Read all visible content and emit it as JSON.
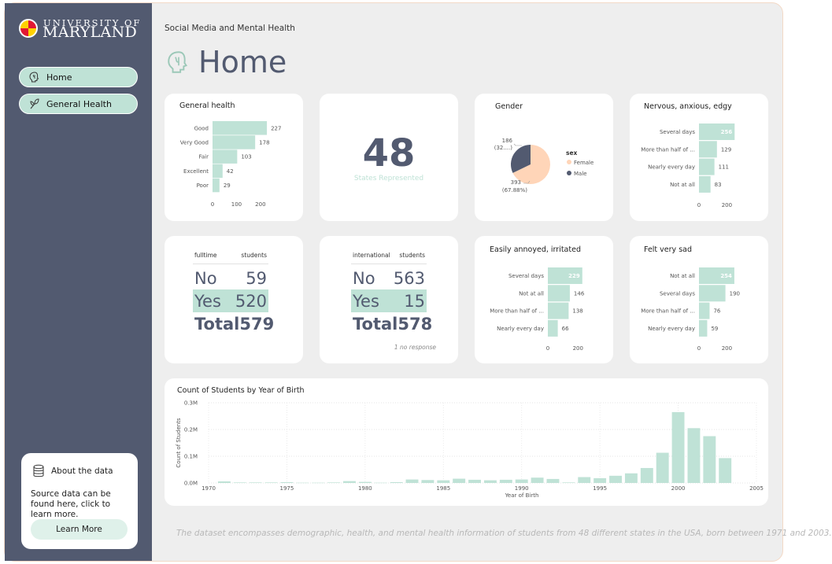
{
  "brand": {
    "logo_line1": "UNIVERSITY OF",
    "logo_line2": "MARYLAND"
  },
  "nav": [
    {
      "label": "Home",
      "icon": "brain-icon"
    },
    {
      "label": "General Health",
      "icon": "health-icon"
    }
  ],
  "about": {
    "title": "About the data",
    "text": "Source data can be found here, click to learn more.",
    "button": "Learn More"
  },
  "breadcrumb": "Social Media and Mental Health",
  "page_title": "Home",
  "colors": {
    "accent": "#bfe2d6",
    "sidebar": "#525a70",
    "male": "#525a70",
    "female": "#ffd5b8"
  },
  "kpi": {
    "value": "48",
    "label": "States Represented"
  },
  "fulltime_table": {
    "headers": [
      "fulltime",
      "students"
    ],
    "rows": [
      {
        "label": "No",
        "value": "59"
      },
      {
        "label": "Yes",
        "value": "520"
      }
    ],
    "total": {
      "label": "Total",
      "value": "579"
    }
  },
  "international_table": {
    "headers": [
      "international",
      "students"
    ],
    "rows": [
      {
        "label": "No",
        "value": "563"
      },
      {
        "label": "Yes",
        "value": "15"
      }
    ],
    "total": {
      "label": "Total",
      "value": "578"
    },
    "note": "1 no response"
  },
  "footer": "The dataset encompasses demographic, health, and mental health information of students from 48 different states in the USA, born between 1971 and 2003.",
  "chart_data": [
    {
      "id": "general_health",
      "type": "bar",
      "orientation": "horizontal",
      "title": "General health",
      "categories": [
        "Good",
        "Very Good",
        "Fair",
        "Excellent",
        "Poor"
      ],
      "values": [
        227,
        178,
        103,
        42,
        29
      ],
      "xlim": [
        0,
        230
      ],
      "xticks": [
        0,
        100,
        200
      ]
    },
    {
      "id": "gender",
      "type": "pie",
      "title": "Gender",
      "legend_title": "sex",
      "slices": [
        {
          "name": "Female",
          "value": 393,
          "label": "393",
          "pct_label": "(67.88%)"
        },
        {
          "name": "Male",
          "value": 186,
          "label": "186",
          "pct_label": "(32....)"
        }
      ]
    },
    {
      "id": "nervous",
      "type": "bar",
      "orientation": "horizontal",
      "title": "Nervous, anxious, edgy",
      "categories": [
        "Several days",
        "More than half of ...",
        "Nearly every day",
        "Not at all"
      ],
      "values": [
        256,
        129,
        111,
        83
      ],
      "xlim": [
        0,
        260
      ],
      "xticks": [
        0,
        200
      ]
    },
    {
      "id": "annoyed",
      "type": "bar",
      "orientation": "horizontal",
      "title": "Easily annoyed, irritated",
      "categories": [
        "Several days",
        "Not at all",
        "More than half of ...",
        "Nearly every day"
      ],
      "values": [
        229,
        146,
        138,
        66
      ],
      "xlim": [
        0,
        230
      ],
      "xticks": [
        0,
        200
      ]
    },
    {
      "id": "sad",
      "type": "bar",
      "orientation": "horizontal",
      "title": "Felt very sad",
      "categories": [
        "Not at all",
        "Several days",
        "More than half of ...",
        "Nearly every day"
      ],
      "values": [
        254,
        190,
        76,
        59
      ],
      "xlim": [
        0,
        260
      ],
      "xticks": [
        0,
        200
      ]
    },
    {
      "id": "birth_year",
      "type": "bar",
      "title": "Count of Students by Year of Birth",
      "xlabel": "Year of Birth",
      "ylabel": "Count of Students",
      "ylim": [
        0,
        0.3
      ],
      "yticks": [
        "0.0M",
        "0.1M",
        "0.2M",
        "0.3M"
      ],
      "yunit": "M",
      "xticks": [
        1970,
        1975,
        1980,
        1985,
        1990,
        1995,
        2000,
        2005
      ],
      "x": [
        1971,
        1972,
        1973,
        1974,
        1975,
        1976,
        1977,
        1978,
        1979,
        1980,
        1981,
        1982,
        1983,
        1984,
        1985,
        1986,
        1987,
        1988,
        1989,
        1990,
        1991,
        1992,
        1993,
        1994,
        1995,
        1996,
        1997,
        1998,
        1999,
        2000,
        2001,
        2002,
        2003
      ],
      "values": [
        0.006,
        0.002,
        0.002,
        0.002,
        0.003,
        0.001,
        0.001,
        0.002,
        0.007,
        0.004,
        0.001,
        0.003,
        0.013,
        0.011,
        0.01,
        0.016,
        0.012,
        0.01,
        0.012,
        0.013,
        0.02,
        0.015,
        0.002,
        0.022,
        0.018,
        0.027,
        0.036,
        0.056,
        0.113,
        0.265,
        0.205,
        0.175,
        0.093
      ]
    }
  ]
}
